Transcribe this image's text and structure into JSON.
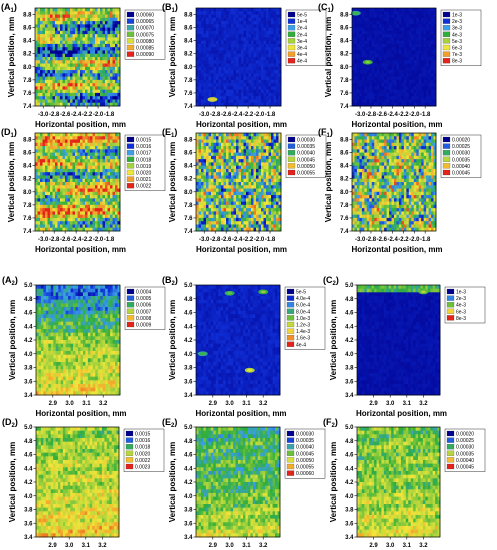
{
  "figure": {
    "x_axis_label": "Horizontal position, mm",
    "y_axis_label": "Vertical position, mm"
  },
  "palette_stops": [
    "#000090",
    "#1030d8",
    "#3ba0e8",
    "#2fae3b",
    "#a8d23c",
    "#f0e63a",
    "#f2a02a",
    "#e4231b"
  ],
  "chart_data": [
    {
      "panel": "A",
      "sub": "1",
      "type": "heatmap",
      "xlabel": "Horizontal position, mm",
      "ylabel": "Vertical position, mm",
      "xlim": [
        -3.15,
        -1.6
      ],
      "ylim": [
        7.4,
        8.9
      ],
      "xticks": [
        "-3.0",
        "-2.8",
        "-2.6",
        "-2.4",
        "-2.2",
        "-2.0",
        "-1.8"
      ],
      "xtick_values": [
        -3.0,
        -2.8,
        -2.6,
        -2.4,
        -2.2,
        -2.0,
        -1.8
      ],
      "yticks": [
        "7.4",
        "7.6",
        "7.8",
        "8.0",
        "8.2",
        "8.4",
        "8.6",
        "8.8"
      ],
      "ytick_values": [
        7.4,
        7.6,
        7.8,
        8.0,
        8.2,
        8.4,
        8.6,
        8.8
      ],
      "legend": [
        "0.00060",
        "0.00065",
        "0.00070",
        "0.00075",
        "0.00080",
        "0.00085",
        "0.00090"
      ],
      "pattern": "banded",
      "bias": 0.45
    },
    {
      "panel": "B",
      "sub": "1",
      "type": "heatmap",
      "xlabel": "Horizontal position, mm",
      "ylabel": "Vertical position, mm",
      "xlim": [
        -3.15,
        -1.6
      ],
      "ylim": [
        7.4,
        8.9
      ],
      "xticks": [
        "-3.0",
        "-2.8",
        "-2.6",
        "-2.4",
        "-2.2",
        "-2.0",
        "-1.8"
      ],
      "xtick_values": [
        -3.0,
        -2.8,
        -2.6,
        -2.4,
        -2.2,
        -2.0,
        -1.8
      ],
      "yticks": [
        "7.4",
        "7.6",
        "7.8",
        "8.0",
        "8.2",
        "8.4",
        "8.6",
        "8.8"
      ],
      "ytick_values": [
        7.4,
        7.6,
        7.8,
        8.0,
        8.2,
        8.4,
        8.6,
        8.8
      ],
      "legend": [
        "5e-5",
        "1e-4",
        "2e-4",
        "2e-4",
        "3e-4",
        "3e-4",
        "4e-4",
        "4e-4"
      ],
      "pattern": "low",
      "hotspots": [
        {
          "x": -2.85,
          "y": 7.5,
          "level": 0.78
        }
      ]
    },
    {
      "panel": "C",
      "sub": "1",
      "type": "heatmap",
      "xlabel": "Horizontal position, mm",
      "ylabel": "Vertical position, mm",
      "xlim": [
        -3.15,
        -1.6
      ],
      "ylim": [
        7.4,
        8.9
      ],
      "xticks": [
        "-3.0",
        "-2.8",
        "-2.6",
        "-2.4",
        "-2.2",
        "-2.0",
        "-1.8"
      ],
      "xtick_values": [
        -3.0,
        -2.8,
        -2.6,
        -2.4,
        -2.2,
        -2.0,
        -1.8
      ],
      "yticks": [
        "7.4",
        "7.6",
        "7.8",
        "8.0",
        "8.2",
        "8.4",
        "8.6",
        "8.8"
      ],
      "ytick_values": [
        7.4,
        7.6,
        7.8,
        8.0,
        8.2,
        8.4,
        8.6,
        8.8
      ],
      "legend": [
        "1e-3",
        "2e-3",
        "3e-3",
        "4e-3",
        "5e-3",
        "6e-3",
        "7e-3",
        "8e-3"
      ],
      "pattern": "verylow",
      "hotspots": [
        {
          "x": -3.08,
          "y": 8.82,
          "level": 0.45
        },
        {
          "x": -2.86,
          "y": 8.07,
          "level": 0.55
        }
      ]
    },
    {
      "panel": "D",
      "sub": "1",
      "type": "heatmap",
      "xlabel": "Horizontal position, mm",
      "ylabel": "Vertical position, mm",
      "xlim": [
        -3.15,
        -1.6
      ],
      "ylim": [
        7.4,
        8.9
      ],
      "xticks": [
        "-3.0",
        "-2.8",
        "-2.6",
        "-2.4",
        "-2.2",
        "-2.0",
        "-1.8"
      ],
      "xtick_values": [
        -3.0,
        -2.8,
        -2.6,
        -2.4,
        -2.2,
        -2.0,
        -1.8
      ],
      "yticks": [
        "7.4",
        "7.6",
        "7.8",
        "8.0",
        "8.2",
        "8.4",
        "8.6",
        "8.8"
      ],
      "ytick_values": [
        7.4,
        7.6,
        7.8,
        8.0,
        8.2,
        8.4,
        8.6,
        8.8
      ],
      "legend": [
        "0.0015",
        "0.0016",
        "0.0017",
        "0.0018",
        "0.0019",
        "0.0020",
        "0.0021",
        "0.0022"
      ],
      "pattern": "banded",
      "bias": 0.58
    },
    {
      "panel": "E",
      "sub": "1",
      "type": "heatmap",
      "xlabel": "Horizontal position, mm",
      "ylabel": "Vertical position, mm",
      "xlim": [
        -3.15,
        -1.6
      ],
      "ylim": [
        7.4,
        8.9
      ],
      "xticks": [
        "-3.0",
        "-2.8",
        "-2.6",
        "-2.4",
        "-2.2",
        "-2.0",
        "-1.8"
      ],
      "xtick_values": [
        -3.0,
        -2.8,
        -2.6,
        -2.4,
        -2.2,
        -2.0,
        -1.8
      ],
      "yticks": [
        "7.4",
        "7.6",
        "7.8",
        "8.0",
        "8.2",
        "8.4",
        "8.6",
        "8.8"
      ],
      "ytick_values": [
        7.4,
        7.6,
        7.8,
        8.0,
        8.2,
        8.4,
        8.6,
        8.8
      ],
      "legend": [
        "0.00030",
        "0.00035",
        "0.00040",
        "0.00045",
        "0.00050",
        "0.00055"
      ],
      "pattern": "mixed",
      "bias": 0.5
    },
    {
      "panel": "F",
      "sub": "1",
      "type": "heatmap",
      "xlabel": "Horizontal position, mm",
      "ylabel": "Vertical position, mm",
      "xlim": [
        -3.15,
        -1.6
      ],
      "ylim": [
        7.4,
        8.9
      ],
      "xticks": [
        "-3.0",
        "-2.8",
        "-2.6",
        "-2.4",
        "-2.2",
        "-2.0",
        "-1.8"
      ],
      "xtick_values": [
        -3.0,
        -2.8,
        -2.6,
        -2.4,
        -2.2,
        -2.0,
        -1.8
      ],
      "yticks": [
        "7.4",
        "7.6",
        "7.8",
        "8.0",
        "8.2",
        "8.4",
        "8.6",
        "8.8"
      ],
      "ytick_values": [
        7.4,
        7.6,
        7.8,
        8.0,
        8.2,
        8.4,
        8.6,
        8.8
      ],
      "legend": [
        "0.00020",
        "0.00025",
        "0.00030",
        "0.00035",
        "0.00040",
        "0.00045"
      ],
      "pattern": "mixed",
      "bias": 0.52
    },
    {
      "panel": "A",
      "sub": "2",
      "type": "heatmap",
      "xlabel": "Horizontal position, mm",
      "ylabel": "Vertical position, mm",
      "xlim": [
        2.8,
        3.3
      ],
      "ylim": [
        3.4,
        5.0
      ],
      "xticks": [
        "2.9",
        "3.0",
        "3.1",
        "3.2"
      ],
      "xtick_values": [
        2.9,
        3.0,
        3.1,
        3.2
      ],
      "yticks": [
        "3.4",
        "3.6",
        "3.8",
        "4.0",
        "4.2",
        "4.4",
        "4.6",
        "4.8",
        "5.0"
      ],
      "ytick_values": [
        3.4,
        3.6,
        3.8,
        4.0,
        4.2,
        4.4,
        4.6,
        4.8,
        5.0
      ],
      "legend": [
        "0.0004",
        "0.0005",
        "0.0006",
        "0.0007",
        "0.0008",
        "0.0009"
      ],
      "pattern": "gradient",
      "top": 0.2,
      "mid": 0.55,
      "bottom": 0.72
    },
    {
      "panel": "B",
      "sub": "2",
      "type": "heatmap",
      "xlabel": "Horizontal position, mm",
      "ylabel": "Vertical position, mm",
      "xlim": [
        2.8,
        3.3
      ],
      "ylim": [
        3.4,
        5.0
      ],
      "xticks": [
        "2.9",
        "3.0",
        "3.1",
        "3.2"
      ],
      "xtick_values": [
        2.9,
        3.0,
        3.1,
        3.2
      ],
      "yticks": [
        "3.4",
        "3.6",
        "3.8",
        "4.0",
        "4.2",
        "4.4",
        "4.6",
        "4.8",
        "5.0"
      ],
      "ytick_values": [
        3.4,
        3.6,
        3.8,
        4.0,
        4.2,
        4.4,
        4.6,
        4.8,
        5.0
      ],
      "legend": [
        "5e-5",
        "4.0e-4",
        "6.0e-4",
        "8.0e-4",
        "1.0e-3",
        "1.2e-3",
        "1.4e-3",
        "1.6e-3",
        "4e-4"
      ],
      "pattern": "low",
      "hotspots": [
        {
          "x": 3.0,
          "y": 4.88,
          "level": 0.5
        },
        {
          "x": 3.2,
          "y": 4.9,
          "level": 0.55
        },
        {
          "x": 3.12,
          "y": 3.76,
          "level": 0.72
        },
        {
          "x": 2.84,
          "y": 4.0,
          "level": 0.45
        }
      ]
    },
    {
      "panel": "C",
      "sub": "2",
      "type": "heatmap",
      "xlabel": "Horizontal position, mm",
      "ylabel": "Vertical position, mm",
      "xlim": [
        2.8,
        3.3
      ],
      "ylim": [
        3.4,
        5.0
      ],
      "xticks": [
        "2.9",
        "3.0",
        "3.1",
        "3.2"
      ],
      "xtick_values": [
        2.9,
        3.0,
        3.1,
        3.2
      ],
      "yticks": [
        "3.4",
        "3.6",
        "3.8",
        "4.0",
        "4.2",
        "4.4",
        "4.6",
        "4.8",
        "5.0"
      ],
      "ytick_values": [
        3.4,
        3.6,
        3.8,
        4.0,
        4.2,
        4.4,
        4.6,
        4.8,
        5.0
      ],
      "legend": [
        "1e-3",
        "2e-3",
        "4e-3",
        "6e-3",
        "8e-3"
      ],
      "pattern": "verylow",
      "topband": true,
      "hotspots": [
        {
          "x": 3.2,
          "y": 4.9,
          "level": 0.6
        }
      ]
    },
    {
      "panel": "D",
      "sub": "2",
      "type": "heatmap",
      "xlabel": "Horizontal position, mm",
      "ylabel": "Vertical position, mm",
      "xlim": [
        2.8,
        3.3
      ],
      "ylim": [
        3.4,
        5.0
      ],
      "xticks": [
        "2.9",
        "3.0",
        "3.1",
        "3.2"
      ],
      "xtick_values": [
        2.9,
        3.0,
        3.1,
        3.2
      ],
      "yticks": [
        "3.4",
        "3.6",
        "3.8",
        "4.0",
        "4.2",
        "4.4",
        "4.6",
        "4.8",
        "5.0"
      ],
      "ytick_values": [
        3.4,
        3.6,
        3.8,
        4.0,
        4.2,
        4.4,
        4.6,
        4.8,
        5.0
      ],
      "legend": [
        "0.0015",
        "0.0016",
        "0.0018",
        "0.0020",
        "0.0022",
        "0.0023"
      ],
      "pattern": "gradient",
      "top": 0.55,
      "mid": 0.62,
      "bottom": 0.74
    },
    {
      "panel": "E",
      "sub": "2",
      "type": "heatmap",
      "xlabel": "Horizontal position, mm",
      "ylabel": "Vertical position, mm",
      "xlim": [
        2.8,
        3.3
      ],
      "ylim": [
        3.4,
        5.0
      ],
      "xticks": [
        "2.9",
        "3.0",
        "3.1",
        "3.2"
      ],
      "xtick_values": [
        2.9,
        3.0,
        3.1,
        3.2
      ],
      "yticks": [
        "3.4",
        "3.6",
        "3.8",
        "4.0",
        "4.2",
        "4.4",
        "4.6",
        "4.8",
        "5.0"
      ],
      "ytick_values": [
        3.4,
        3.6,
        3.8,
        4.0,
        4.2,
        4.4,
        4.6,
        4.8,
        5.0
      ],
      "legend": [
        "0.00030",
        "0.00035",
        "0.00040",
        "0.00045",
        "0.00050",
        "0.00055",
        "0.00060"
      ],
      "pattern": "gradient",
      "top": 0.42,
      "mid": 0.45,
      "bottom": 0.65
    },
    {
      "panel": "F",
      "sub": "2",
      "type": "heatmap",
      "xlabel": "Horizontal position, mm",
      "ylabel": "Vertical position, mm",
      "xlim": [
        2.8,
        3.3
      ],
      "ylim": [
        3.4,
        5.0
      ],
      "xticks": [
        "2.9",
        "3.0",
        "3.1",
        "3.2"
      ],
      "xtick_values": [
        2.9,
        3.0,
        3.1,
        3.2
      ],
      "yticks": [
        "3.4",
        "3.6",
        "3.8",
        "4.0",
        "4.2",
        "4.4",
        "4.6",
        "4.8",
        "5.0"
      ],
      "ytick_values": [
        3.4,
        3.6,
        3.8,
        4.0,
        4.2,
        4.4,
        4.6,
        4.8,
        5.0
      ],
      "legend": [
        "0.00020",
        "0.00025",
        "0.00030",
        "0.00035",
        "0.00040",
        "0.00045"
      ],
      "pattern": "gradient",
      "top": 0.5,
      "mid": 0.55,
      "bottom": 0.66
    }
  ]
}
